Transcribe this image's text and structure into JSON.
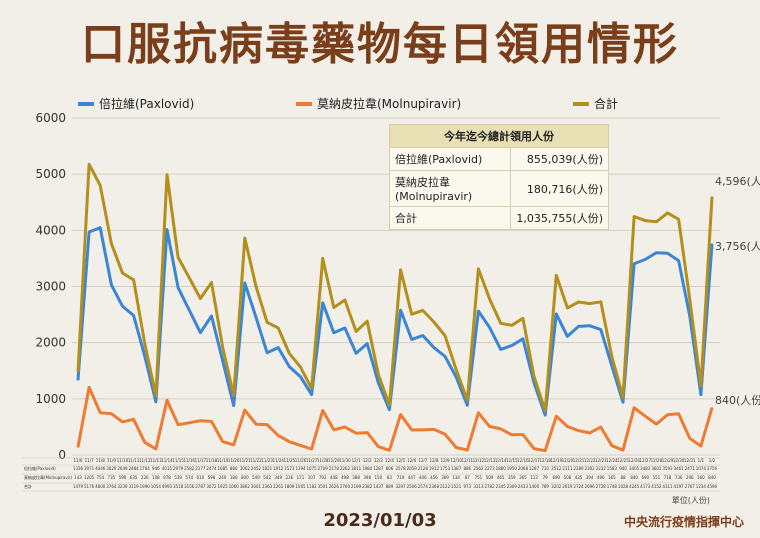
{
  "title": "口服抗病毒藥物每日領用情形",
  "date": "2023/01/03",
  "source": "中央流行疫情指揮中心",
  "unit": "單位(人份)",
  "colors": {
    "paxlovid": "#3b86d4",
    "molnupiravir": "#ee7b32",
    "total": "#b3901c",
    "title": "#7a3f1a"
  },
  "summary": {
    "header": "今年迄今總計領用人份",
    "rows": [
      {
        "label": "倍拉維(Paxlovid)",
        "value": "855,039(人份)"
      },
      {
        "label": "莫納皮拉韋(Molnupiravir)",
        "value": "180,716(人份)"
      },
      {
        "label": "合計",
        "value": "1,035,755(人份)"
      }
    ]
  },
  "chart_data": {
    "type": "line",
    "ylim": [
      0,
      6000
    ],
    "yticks": [
      0,
      1000,
      2000,
      3000,
      4000,
      5000,
      6000
    ],
    "legend_position": "top",
    "grid": true,
    "categories": [
      "11/6",
      "11/7",
      "11/8",
      "11/9",
      "11/10",
      "11/11",
      "11/12",
      "11/13",
      "11/14",
      "11/15",
      "11/16",
      "11/17",
      "11/18",
      "11/19",
      "11/20",
      "11/21",
      "11/22",
      "11/23",
      "11/24",
      "11/25",
      "11/26",
      "11/27",
      "11/28",
      "11/29",
      "11/30",
      "12/1",
      "12/2",
      "12/3",
      "12/4",
      "12/5",
      "12/6",
      "12/7",
      "12/8",
      "12/9",
      "12/10",
      "12/11",
      "12/12",
      "12/13",
      "12/14",
      "12/15",
      "12/16",
      "12/17",
      "12/18",
      "12/19",
      "12/20",
      "12/21",
      "12/22",
      "12/23",
      "12/24",
      "12/25",
      "12/26",
      "12/27",
      "12/28",
      "12/29",
      "12/30",
      "12/31",
      "1/1",
      "1/2"
    ],
    "series": [
      {
        "name": "倍拉維(Paxlovid)",
        "key": "paxlovid",
        "values": [
          1336,
          3971,
          4046,
          3029,
          2649,
          2484,
          1764,
          946,
          4015,
          2979,
          2582,
          2177,
          2474,
          1685,
          880,
          3062,
          2452,
          1821,
          1912,
          1573,
          1394,
          1075,
          2709,
          2178,
          2262,
          1811,
          1984,
          1287,
          806,
          2578,
          2059,
          2128,
          1912,
          1753,
          1387,
          886,
          2562,
          2273,
          1880,
          1950,
          2068,
          1287,
          710,
          2512,
          2111,
          2289,
          2302,
          2232,
          1583,
          940,
          3405,
          3483,
          3601,
          3593,
          3461,
          2471,
          1074,
          3756
        ],
        "show_last": "3,756(人份)"
      },
      {
        "name": "莫納皮拉韋(Molnupiravir)",
        "key": "molnupiravir",
        "values": [
          143,
          1205,
          754,
          735,
          590,
          635,
          226,
          108,
          978,
          539,
          574,
          610,
          598,
          240,
          180,
          800,
          549,
          542,
          349,
          236,
          171,
          107,
          792,
          448,
          498,
          388,
          398,
          150,
          83,
          719,
          447,
          446,
          456,
          369,
          134,
          87,
          751,
          509,
          465,
          359,
          365,
          113,
          79,
          690,
          508,
          435,
          394,
          496,
          165,
          88,
          840,
          690,
          551,
          718,
          736,
          296,
          160,
          840
        ],
        "show_last": "840(人份)"
      },
      {
        "name": "合計",
        "key": "total",
        "values": [
          1479,
          5176,
          4800,
          3764,
          3239,
          3119,
          1990,
          1054,
          4993,
          3518,
          3156,
          2787,
          3072,
          1925,
          1060,
          3862,
          3001,
          2363,
          2261,
          1809,
          1565,
          1182,
          3501,
          2626,
          2760,
          2199,
          2382,
          1437,
          889,
          3297,
          2506,
          2574,
          2368,
          2122,
          1521,
          973,
          3313,
          2782,
          2345,
          2309,
          2433,
          1400,
          789,
          3202,
          2619,
          2724,
          2696,
          2728,
          1748,
          1028,
          4245,
          4173,
          4152,
          4311,
          4197,
          2767,
          1234,
          4596
        ],
        "show_last": "4,596(人份)"
      }
    ]
  }
}
